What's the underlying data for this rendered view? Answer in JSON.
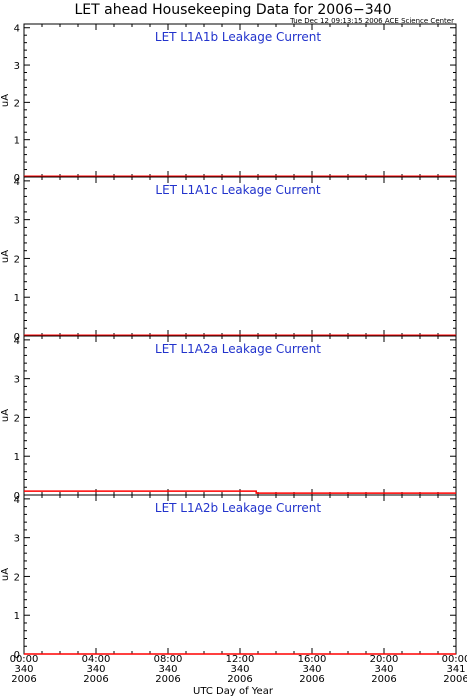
{
  "title": "LET ahead Housekeeping Data for 2006−340",
  "timestamp": "Tue Dec 12 09:13:15 2006 ACE Science Center",
  "xlabel": "UTC Day of Year",
  "colors": {
    "trace": "#ff0000",
    "panel_title": "#2233cc",
    "axes": "#000000"
  },
  "chart_data": [
    {
      "type": "line",
      "title": "LET L1A1b Leakage Current",
      "ylabel": "uA",
      "ylim": [
        0,
        4.1
      ],
      "yticks": [
        0,
        1,
        2,
        3,
        4
      ],
      "xlim": [
        0,
        24
      ],
      "series": [
        {
          "x": [
            0,
            24
          ],
          "y": [
            0.02,
            0.02
          ]
        }
      ]
    },
    {
      "type": "line",
      "title": "LET L1A1c Leakage Current",
      "ylabel": "uA",
      "ylim": [
        0,
        4.1
      ],
      "yticks": [
        0,
        1,
        2,
        3,
        4
      ],
      "xlim": [
        0,
        24
      ],
      "series": [
        {
          "x": [
            0,
            24
          ],
          "y": [
            0.02,
            0.02
          ]
        }
      ]
    },
    {
      "type": "line",
      "title": "LET L1A2a Leakage Current",
      "ylabel": "uA",
      "ylim": [
        0,
        4.1
      ],
      "yticks": [
        0,
        1,
        2,
        3,
        4
      ],
      "xlim": [
        0,
        24
      ],
      "series": [
        {
          "x": [
            0,
            12.9,
            12.9,
            24
          ],
          "y": [
            0.1,
            0.1,
            0.05,
            0.05
          ]
        }
      ]
    },
    {
      "type": "line",
      "title": "LET L1A2b Leakage Current",
      "ylabel": "uA",
      "ylim": [
        0,
        4.1
      ],
      "yticks": [
        0,
        1,
        2,
        3,
        4
      ],
      "xlim": [
        0,
        24
      ],
      "series": [
        {
          "x": [
            0,
            24
          ],
          "y": [
            0.0,
            0.0
          ]
        }
      ]
    }
  ],
  "xticks": [
    {
      "value": 0,
      "time": "00:00",
      "doy": "340",
      "year": "2006"
    },
    {
      "value": 4,
      "time": "04:00",
      "doy": "340",
      "year": "2006"
    },
    {
      "value": 8,
      "time": "08:00",
      "doy": "340",
      "year": "2006"
    },
    {
      "value": 12,
      "time": "12:00",
      "doy": "340",
      "year": "2006"
    },
    {
      "value": 16,
      "time": "16:00",
      "doy": "340",
      "year": "2006"
    },
    {
      "value": 20,
      "time": "20:00",
      "doy": "340",
      "year": "2006"
    },
    {
      "value": 24,
      "time": "00:00",
      "doy": "341",
      "year": "2006"
    }
  ]
}
